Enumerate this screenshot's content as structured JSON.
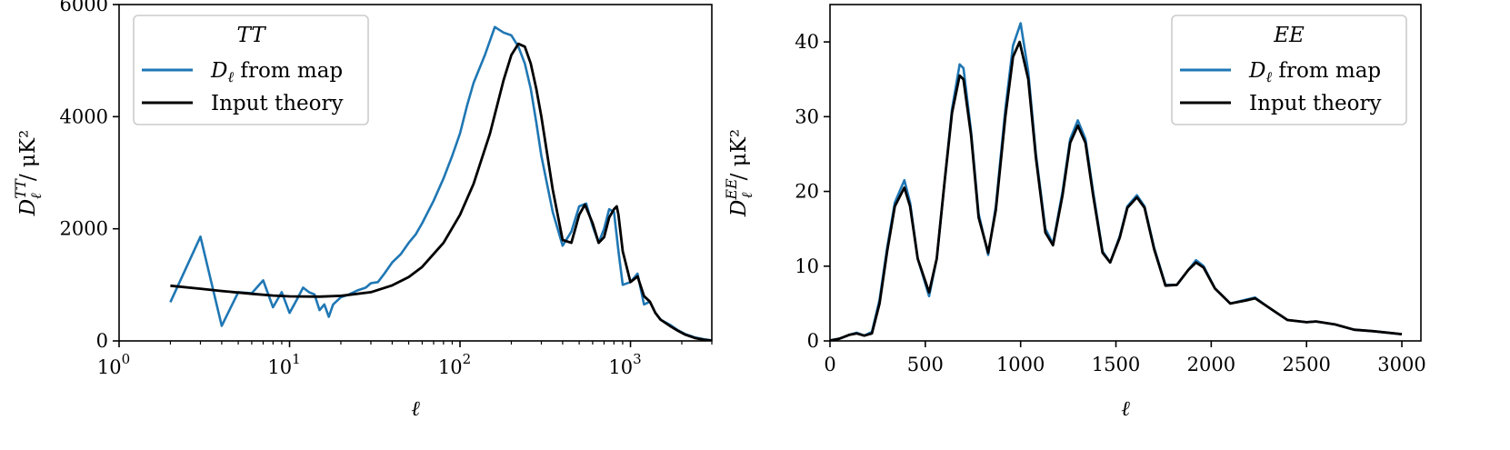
{
  "chart_data": [
    {
      "type": "line",
      "legend_title": "TT",
      "legend_placement": "top-left",
      "xlabel": "ℓ",
      "ylabel_main": "D",
      "ylabel_sub": "ℓ",
      "ylabel_sup": "TT",
      "ylabel_unit": "/ μK²",
      "xscale": "log",
      "xlim": [
        1,
        3000
      ],
      "ylim": [
        0,
        6000
      ],
      "xticks": [
        "10",
        "10",
        "10",
        "10"
      ],
      "xtick_exponents": [
        "0",
        "1",
        "2",
        "3"
      ],
      "yticks": [
        "0",
        "2000",
        "4000",
        "6000"
      ],
      "grid": false,
      "series": [
        {
          "name": "D_ℓ from map",
          "name_main": "D",
          "name_sub": "ℓ",
          "name_rest": " from map",
          "color": "#1f77b4",
          "x": [
            2,
            3,
            4,
            5,
            6,
            7,
            8,
            9,
            10,
            11,
            12,
            13,
            14,
            15,
            16,
            17,
            18,
            20,
            22,
            25,
            28,
            30,
            33,
            36,
            40,
            45,
            50,
            55,
            60,
            70,
            80,
            90,
            100,
            110,
            120,
            140,
            160,
            180,
            200,
            220,
            240,
            260,
            280,
            300,
            350,
            400,
            450,
            500,
            550,
            600,
            650,
            700,
            750,
            800,
            850,
            900,
            1000,
            1100,
            1200,
            1300,
            1400,
            1500,
            1700,
            1900,
            2100,
            2400,
            2700,
            3000
          ],
          "y": [
            690,
            1860,
            270,
            870,
            850,
            1080,
            600,
            870,
            500,
            730,
            950,
            870,
            830,
            550,
            650,
            430,
            650,
            780,
            820,
            900,
            950,
            1030,
            1050,
            1200,
            1400,
            1550,
            1750,
            1900,
            2100,
            2500,
            2900,
            3300,
            3700,
            4200,
            4600,
            5100,
            5600,
            5500,
            5450,
            5250,
            4950,
            4500,
            3900,
            3300,
            2300,
            1700,
            1950,
            2400,
            2450,
            2050,
            1750,
            2000,
            2350,
            2300,
            1600,
            1000,
            1050,
            1200,
            650,
            700,
            500,
            380,
            290,
            190,
            120,
            60,
            30,
            10
          ]
        },
        {
          "name": "Input theory",
          "color": "#000000",
          "x": [
            2,
            3,
            4,
            6,
            8,
            10,
            15,
            20,
            30,
            40,
            50,
            60,
            80,
            100,
            120,
            150,
            180,
            200,
            220,
            240,
            260,
            280,
            300,
            350,
            400,
            450,
            500,
            540,
            600,
            650,
            700,
            750,
            800,
            830,
            850,
            900,
            1000,
            1100,
            1200,
            1300,
            1400,
            1500,
            1700,
            1900,
            2100,
            2400,
            2700,
            3000
          ],
          "y": [
            985,
            930,
            890,
            840,
            810,
            795,
            790,
            805,
            870,
            990,
            1140,
            1320,
            1750,
            2250,
            2800,
            3700,
            4650,
            5100,
            5300,
            5250,
            4950,
            4500,
            4000,
            2700,
            1800,
            1750,
            2250,
            2430,
            2100,
            1750,
            1850,
            2200,
            2350,
            2400,
            2250,
            1600,
            1050,
            1150,
            800,
            700,
            500,
            380,
            270,
            180,
            110,
            50,
            20,
            5
          ]
        }
      ]
    },
    {
      "type": "line",
      "legend_title": "EE",
      "legend_placement": "top-right",
      "xlabel": "ℓ",
      "ylabel_main": "D",
      "ylabel_sub": "ℓ",
      "ylabel_sup": "EE",
      "ylabel_unit": "/ μK²",
      "xscale": "linear",
      "xlim": [
        0,
        3100
      ],
      "ylim": [
        0,
        45
      ],
      "xticks": [
        "0",
        "500",
        "1000",
        "1500",
        "2000",
        "2500",
        "3000"
      ],
      "yticks": [
        "0",
        "10",
        "20",
        "30",
        "40"
      ],
      "grid": false,
      "series": [
        {
          "name": "D_ℓ from map",
          "name_main": "D",
          "name_sub": "ℓ",
          "name_rest": " from map",
          "color": "#1f77b4",
          "x": [
            2,
            50,
            100,
            140,
            180,
            220,
            260,
            300,
            340,
            390,
            420,
            460,
            520,
            560,
            600,
            640,
            680,
            700,
            740,
            780,
            830,
            870,
            920,
            960,
            1000,
            1040,
            1080,
            1130,
            1170,
            1220,
            1260,
            1300,
            1340,
            1380,
            1430,
            1470,
            1520,
            1560,
            1610,
            1650,
            1700,
            1760,
            1820,
            1880,
            1920,
            1960,
            2020,
            2100,
            2180,
            2230,
            2300,
            2400,
            2500,
            2550,
            2650,
            2750,
            2850,
            3000
          ],
          "y": [
            0.1,
            0.3,
            0.8,
            1.1,
            0.7,
            1.2,
            5.5,
            12.5,
            18.5,
            21.5,
            18.5,
            11,
            6,
            11,
            21,
            31,
            37,
            36.5,
            28,
            17,
            11.5,
            18,
            31,
            39.5,
            42.5,
            36,
            25,
            15,
            13,
            20,
            27,
            29.5,
            27,
            20,
            12,
            10.5,
            14,
            18,
            19.5,
            18,
            12.5,
            7.5,
            7.5,
            9.5,
            10.8,
            10,
            7,
            5,
            5.5,
            5.8,
            4.5,
            2.8,
            2.5,
            2.6,
            2.2,
            1.5,
            1.3,
            0.9
          ]
        },
        {
          "name": "Input theory",
          "color": "#000000",
          "x": [
            2,
            50,
            100,
            140,
            180,
            220,
            260,
            300,
            340,
            390,
            420,
            460,
            520,
            560,
            600,
            640,
            680,
            700,
            740,
            780,
            830,
            870,
            920,
            960,
            995,
            1040,
            1080,
            1130,
            1170,
            1220,
            1260,
            1300,
            1340,
            1380,
            1430,
            1470,
            1520,
            1560,
            1610,
            1650,
            1700,
            1760,
            1820,
            1880,
            1920,
            1960,
            2020,
            2100,
            2180,
            2230,
            2300,
            2400,
            2500,
            2550,
            2650,
            2750,
            2850,
            3000
          ],
          "y": [
            0.05,
            0.3,
            0.8,
            1.0,
            0.7,
            1.0,
            5,
            12,
            18,
            20.5,
            18,
            11,
            6.5,
            11,
            21,
            30.5,
            35.5,
            35,
            27.5,
            16.5,
            11.8,
            17.5,
            30,
            38,
            40,
            35,
            24.5,
            14.5,
            12.8,
            19.5,
            26.5,
            28.8,
            26.5,
            19.5,
            11.8,
            10.5,
            13.8,
            17.8,
            19.2,
            17.8,
            12.3,
            7.4,
            7.5,
            9.5,
            10.5,
            9.8,
            7,
            5,
            5.4,
            5.7,
            4.5,
            2.8,
            2.5,
            2.6,
            2.2,
            1.5,
            1.3,
            0.9
          ]
        }
      ]
    }
  ]
}
